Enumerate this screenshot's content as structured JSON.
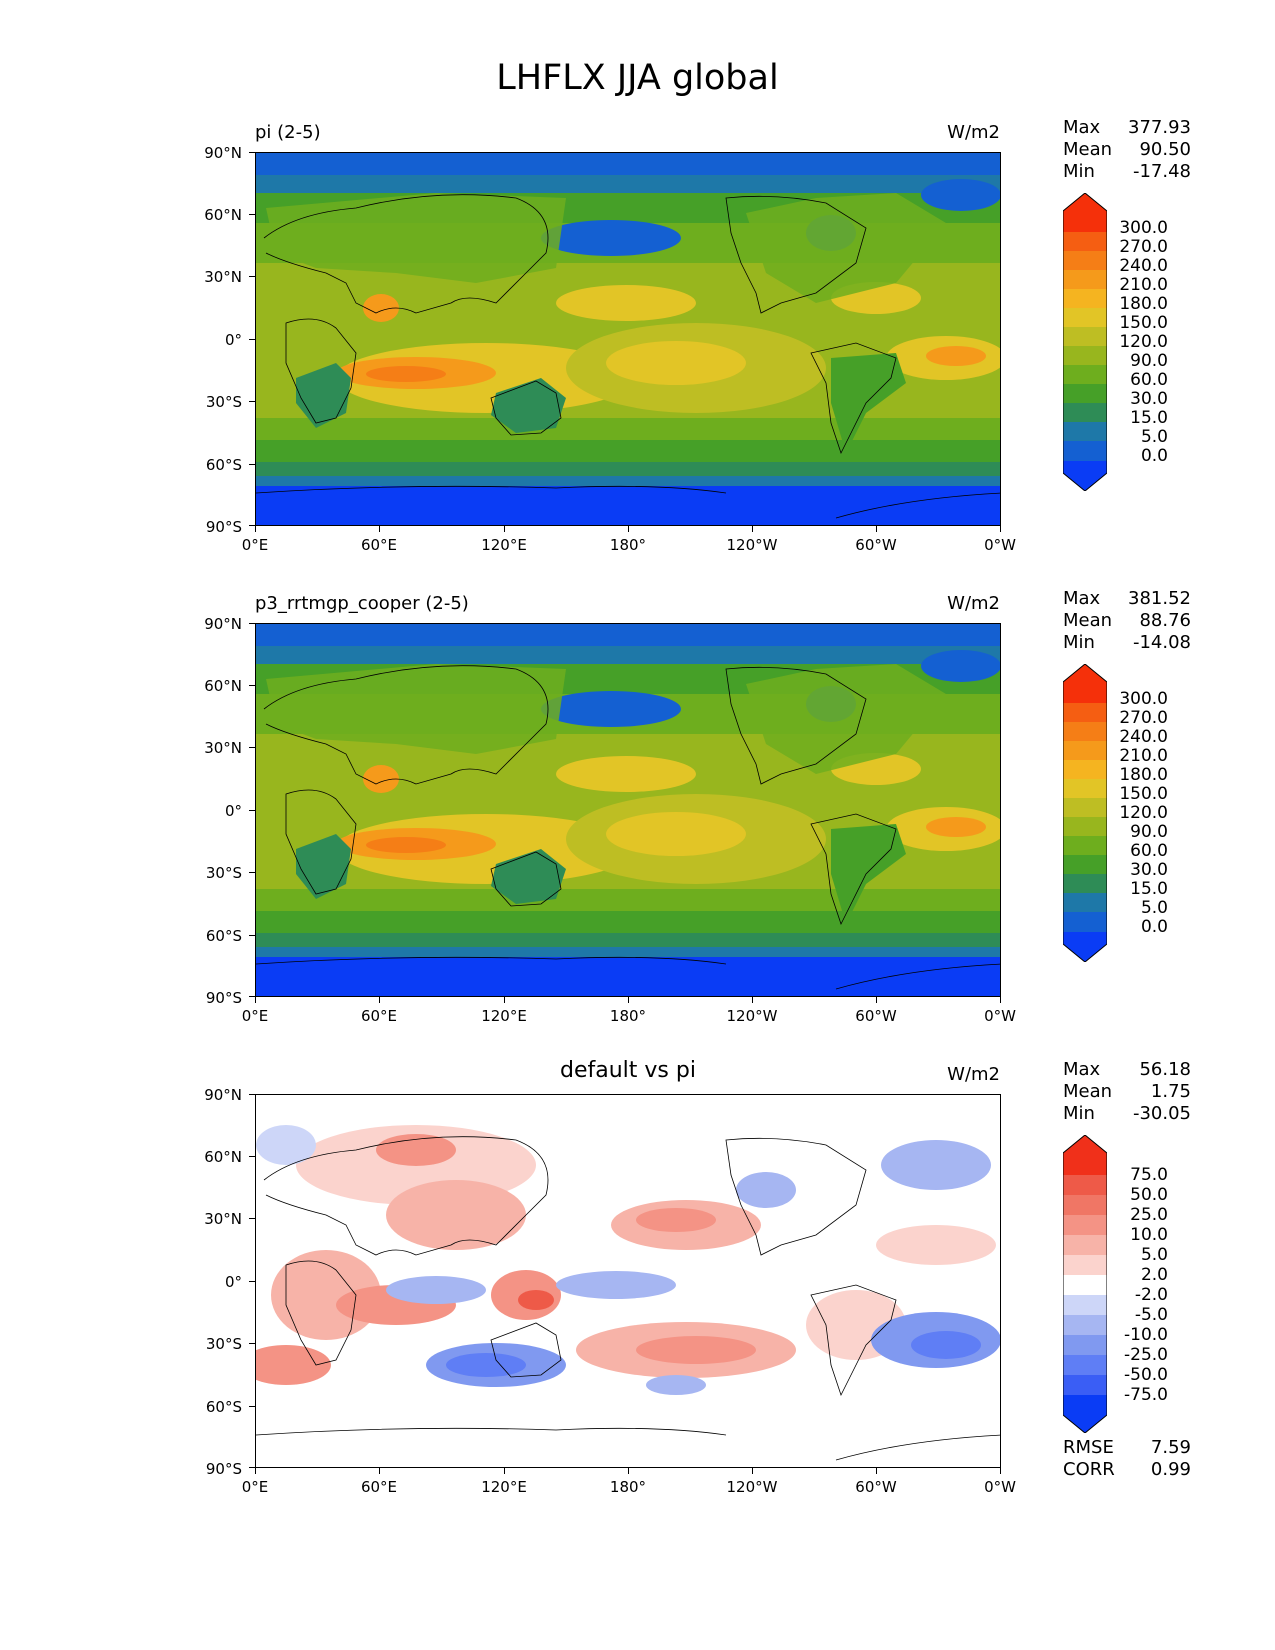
{
  "suptitle": "LHFLX JJA global",
  "lat_labels": [
    "90°N",
    "60°N",
    "30°N",
    "0°",
    "30°S",
    "60°S",
    "90°S"
  ],
  "lon_labels": [
    "0°E",
    "60°E",
    "120°E",
    "180°",
    "120°W",
    "60°W",
    "0°W"
  ],
  "colors": {
    "abs_levels": [
      "#0a3cf5",
      "#1460d2",
      "#1e78a8",
      "#2e8c56",
      "#46a028",
      "#6eae1e",
      "#98b61e",
      "#bebe23",
      "#e2c526",
      "#f5b420",
      "#f59a1b",
      "#f57e16",
      "#f55e12",
      "#f5300a"
    ],
    "diff_levels": [
      "#0a3cf5",
      "#3a5ef5",
      "#5f7ef5",
      "#8099f0",
      "#a6b6f2",
      "#cdd6f8",
      "#ffffff",
      "#ffffff",
      "#fbd3cd",
      "#f7b3a8",
      "#f49385",
      "#f07665",
      "#ee5a48",
      "#f0301a"
    ]
  },
  "panels": [
    {
      "title": "pi (2-5)",
      "units": "W/m2",
      "stats": [
        {
          "label": "Max",
          "value": "377.93"
        },
        {
          "label": "Mean",
          "value": "90.50"
        },
        {
          "label": "Min",
          "value": "-17.48"
        }
      ],
      "colorbar": [
        "300.0",
        "270.0",
        "240.0",
        "210.0",
        "180.0",
        "150.0",
        "120.0",
        "90.0",
        "60.0",
        "30.0",
        "15.0",
        "5.0",
        "0.0"
      ]
    },
    {
      "title": "p3_rrtmgp_cooper (2-5)",
      "units": "W/m2",
      "stats": [
        {
          "label": "Max",
          "value": "381.52"
        },
        {
          "label": "Mean",
          "value": "88.76"
        },
        {
          "label": "Min",
          "value": "-14.08"
        }
      ],
      "colorbar": [
        "300.0",
        "270.0",
        "240.0",
        "210.0",
        "180.0",
        "150.0",
        "120.0",
        "90.0",
        "60.0",
        "30.0",
        "15.0",
        "5.0",
        "0.0"
      ]
    },
    {
      "title": "default vs pi",
      "units": "W/m2",
      "stats": [
        {
          "label": "Max",
          "value": "56.18"
        },
        {
          "label": "Mean",
          "value": "1.75"
        },
        {
          "label": "Min",
          "value": "-30.05"
        }
      ],
      "colorbar": [
        "75.0",
        "50.0",
        "25.0",
        "10.0",
        "5.0",
        "2.0",
        "-2.0",
        "-5.0",
        "-10.0",
        "-25.0",
        "-50.0",
        "-75.0"
      ],
      "metrics": [
        {
          "label": "RMSE",
          "value": "7.59"
        },
        {
          "label": "CORR",
          "value": "0.99"
        }
      ]
    }
  ]
}
